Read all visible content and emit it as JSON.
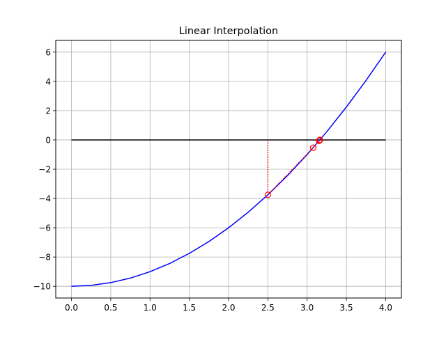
{
  "chart_data": {
    "type": "line",
    "title": "Linear Interpolation",
    "xlabel": "",
    "ylabel": "",
    "xlim": [
      -0.2,
      4.2
    ],
    "ylim": [
      -10.8,
      6.8
    ],
    "grid": true,
    "xticks": [
      0.0,
      0.5,
      1.0,
      1.5,
      2.0,
      2.5,
      3.0,
      3.5,
      4.0
    ],
    "xtick_labels": [
      "0.0",
      "0.5",
      "1.0",
      "1.5",
      "2.0",
      "2.5",
      "3.0",
      "3.5",
      "4.0"
    ],
    "yticks": [
      -10,
      -8,
      -6,
      -4,
      -2,
      0,
      2,
      4,
      6
    ],
    "ytick_labels": [
      "−10",
      "−8",
      "−6",
      "−4",
      "−2",
      "0",
      "2",
      "4",
      "6"
    ],
    "curve": {
      "color": "#0000ff",
      "x": [
        0.0,
        0.25,
        0.5,
        0.75,
        1.0,
        1.25,
        1.5,
        1.75,
        2.0,
        2.25,
        2.5,
        2.75,
        3.0,
        3.25,
        3.5,
        3.75,
        4.0
      ],
      "y": [
        -10.0,
        -9.94,
        -9.75,
        -9.44,
        -9.0,
        -8.44,
        -7.75,
        -6.94,
        -6.0,
        -4.94,
        -3.75,
        -2.44,
        -1.0,
        0.56,
        2.25,
        4.06,
        6.0
      ]
    },
    "zero_line": {
      "color": "#000000",
      "x": [
        0.0,
        4.0
      ],
      "y": [
        0,
        0
      ]
    },
    "iterates": {
      "color": "#ff0000",
      "x": [
        2.5,
        3.077,
        3.152,
        3.161,
        3.162,
        3.1623
      ],
      "y": [
        -3.75,
        -0.53,
        -0.063,
        -0.007,
        -0.001,
        0.0
      ]
    }
  }
}
